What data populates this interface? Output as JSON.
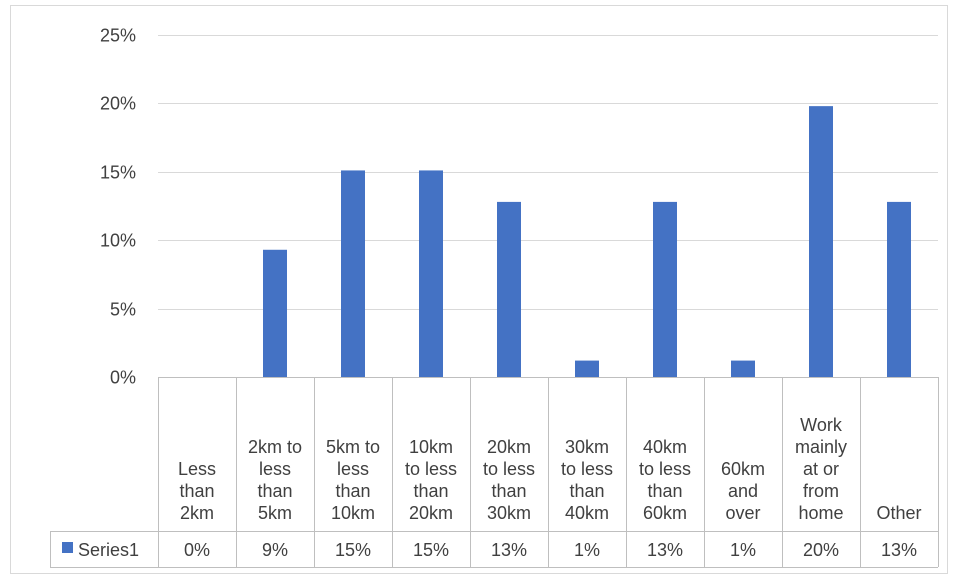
{
  "chart_data": {
    "type": "bar",
    "title": "",
    "xlabel": "",
    "ylabel": "",
    "ylim": [
      0,
      0.25
    ],
    "yticks": [
      "0%",
      "5%",
      "10%",
      "15%",
      "20%",
      "25%"
    ],
    "grid": true,
    "legend_in_data_table": true,
    "categories": [
      [
        "Less",
        "than",
        "2km"
      ],
      [
        "2km to",
        "less",
        "than",
        "5km"
      ],
      [
        "5km to",
        "less",
        "than",
        "10km"
      ],
      [
        "10km",
        "to less",
        "than",
        "20km"
      ],
      [
        "20km",
        "to less",
        "than",
        "30km"
      ],
      [
        "30km",
        "to less",
        "than",
        "40km"
      ],
      [
        "40km",
        "to less",
        "than",
        "60km"
      ],
      [
        "60km",
        "and",
        "over"
      ],
      [
        "Work",
        "mainly",
        "at or",
        "from",
        "home"
      ],
      [
        "Other"
      ]
    ],
    "series": [
      {
        "name": "Series1",
        "color": "#4472C4",
        "values": [
          0.0,
          0.093,
          0.151,
          0.151,
          0.128,
          0.012,
          0.128,
          0.012,
          0.198,
          0.128
        ],
        "labels": [
          "0%",
          "9%",
          "15%",
          "15%",
          "13%",
          "1%",
          "13%",
          "1%",
          "20%",
          "13%"
        ]
      }
    ]
  }
}
